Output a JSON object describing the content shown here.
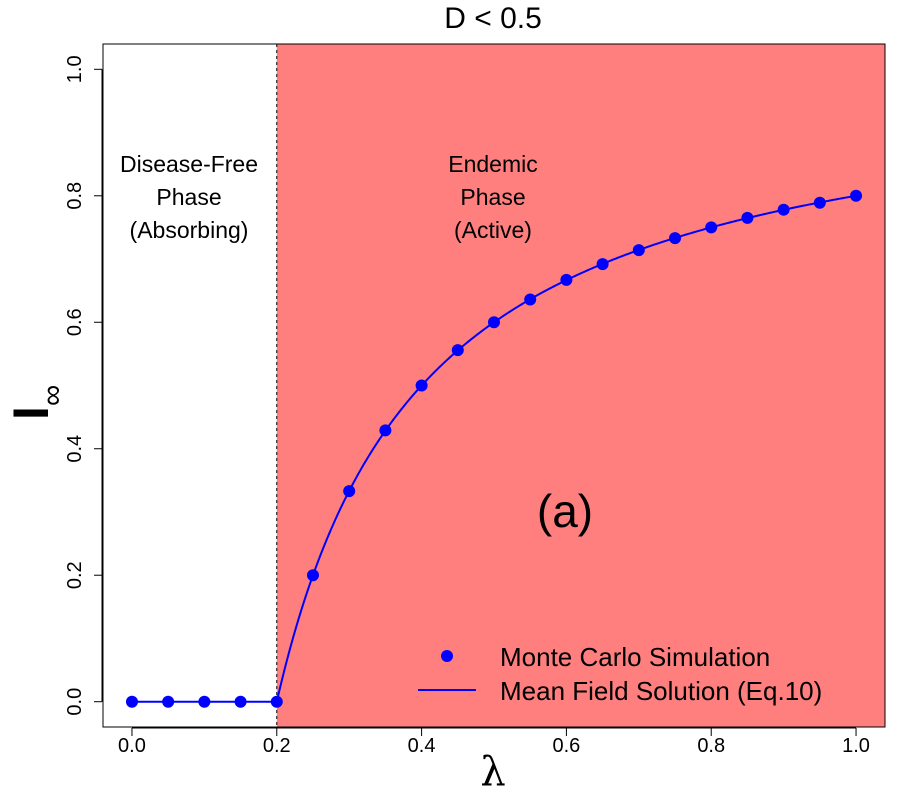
{
  "chart_data": {
    "type": "line",
    "title": "D < 0.5",
    "xlabel": "λ",
    "ylabel": {
      "main": "I",
      "subscript": "∞"
    },
    "xlim": [
      -0.04,
      1.04
    ],
    "ylim": [
      -0.04,
      1.04
    ],
    "x_ticks": [
      "0.0",
      "0.2",
      "0.4",
      "0.6",
      "0.8",
      "1.0"
    ],
    "y_ticks": [
      "0.0",
      "0.2",
      "0.4",
      "0.6",
      "0.8",
      "1.0"
    ],
    "critical_x": 0.2,
    "regions": [
      {
        "lines": [
          "Disease-Free",
          "Phase",
          "(Absorbing)"
        ],
        "range": [
          -0.04,
          0.2
        ],
        "color": "#ffffff"
      },
      {
        "lines": [
          "Endemic",
          "Phase",
          "(Active)"
        ],
        "range": [
          0.2,
          1.04
        ],
        "color": "#ff7f7f"
      }
    ],
    "panel_label": "(a)",
    "series": [
      {
        "name": "Monte Carlo Simulation",
        "kind": "points",
        "color": "#0000ff",
        "x": [
          0.0,
          0.05,
          0.1,
          0.15,
          0.2,
          0.25,
          0.3,
          0.35,
          0.4,
          0.45,
          0.5,
          0.55,
          0.6,
          0.65,
          0.7,
          0.75,
          0.8,
          0.85,
          0.9,
          0.95,
          1.0
        ],
        "y": [
          0.0,
          0.0,
          0.0,
          0.0,
          0.0,
          0.2,
          0.333,
          0.429,
          0.5,
          0.556,
          0.6,
          0.636,
          0.667,
          0.692,
          0.714,
          0.733,
          0.75,
          0.765,
          0.778,
          0.789,
          0.8
        ]
      },
      {
        "name": "Mean Field Solution (Eq.10)",
        "kind": "line",
        "color": "#0000ff",
        "formula": "I = max(0, 1 - 0.2/λ)"
      }
    ],
    "legend_position": "bottom-right"
  }
}
